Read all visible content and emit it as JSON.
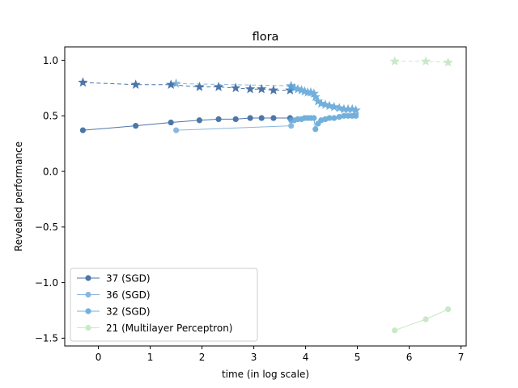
{
  "chart_data": {
    "type": "line",
    "title": "flora",
    "xlabel": "time (in log scale)",
    "ylabel": "Revealed performance",
    "xlim": [
      -0.65,
      7.1
    ],
    "ylim": [
      -1.57,
      1.12
    ],
    "xticks": [
      0,
      1,
      2,
      3,
      4,
      5,
      6,
      7
    ],
    "yticks": [
      -1.5,
      -1.0,
      -0.5,
      0.0,
      0.5,
      1.0
    ],
    "xtick_labels": [
      "0",
      "1",
      "2",
      "3",
      "4",
      "5",
      "6",
      "7"
    ],
    "ytick_labels": [
      "−1.5",
      "−1.0",
      "−0.5",
      "0.0",
      "0.5",
      "1.0"
    ],
    "grid": false,
    "legend_position": "lower-left",
    "series": [
      {
        "name": "37 (SGD)",
        "color": "#2d5f9a",
        "alpha": 0.85,
        "marker": "circle",
        "linestyle": "solid",
        "x": [
          -0.3,
          0.72,
          1.4,
          1.95,
          2.32,
          2.65,
          2.93,
          3.15,
          3.38,
          3.7
        ],
        "y": [
          0.37,
          0.41,
          0.44,
          0.46,
          0.47,
          0.47,
          0.48,
          0.48,
          0.48,
          0.48
        ]
      },
      {
        "name": "36 (SGD)",
        "color": "#5a9ad0",
        "alpha": 0.7,
        "marker": "circle",
        "linestyle": "solid",
        "x": [
          1.5,
          3.72
        ],
        "y": [
          0.37,
          0.41
        ]
      },
      {
        "name": "32 (SGD)",
        "color": "#5ba3d6",
        "alpha": 0.85,
        "marker": "circle",
        "linestyle": "solid",
        "x": [
          3.72,
          3.78,
          3.85,
          3.92,
          3.98,
          4.04,
          4.1,
          4.16,
          4.19,
          4.24,
          4.3,
          4.38,
          4.46,
          4.55,
          4.65,
          4.74,
          4.82,
          4.9,
          4.97
        ],
        "y": [
          0.46,
          0.46,
          0.47,
          0.47,
          0.48,
          0.48,
          0.48,
          0.48,
          0.38,
          0.43,
          0.46,
          0.47,
          0.48,
          0.48,
          0.49,
          0.5,
          0.5,
          0.5,
          0.5
        ]
      },
      {
        "name": "21 (Multilayer Perceptron)",
        "color": "#c6e8c4",
        "alpha": 0.95,
        "marker": "circle",
        "linestyle": "solid",
        "x": [
          5.72,
          6.32,
          6.75
        ],
        "y": [
          -1.43,
          -1.33,
          -1.24
        ]
      }
    ],
    "best_so_far_series": [
      {
        "ref": "37 (SGD)",
        "color": "#2d5f9a",
        "marker": "star",
        "linestyle": "dashed",
        "x": [
          -0.3,
          0.72,
          1.4,
          1.95,
          2.32,
          2.65,
          2.93,
          3.15,
          3.38,
          3.7
        ],
        "y": [
          0.8,
          0.78,
          0.78,
          0.76,
          0.76,
          0.75,
          0.74,
          0.74,
          0.73,
          0.73
        ]
      },
      {
        "ref": "36 (SGD)",
        "color": "#5a9ad0",
        "marker": "star",
        "linestyle": "dashed",
        "x": [
          1.5,
          3.72
        ],
        "y": [
          0.79,
          0.77
        ]
      },
      {
        "ref": "32 (SGD)",
        "color": "#5ba3d6",
        "marker": "star",
        "linestyle": "dashed",
        "x": [
          3.72,
          3.78,
          3.85,
          3.92,
          3.98,
          4.04,
          4.1,
          4.16,
          4.19,
          4.24,
          4.3,
          4.38,
          4.46,
          4.55,
          4.65,
          4.74,
          4.82,
          4.9,
          4.97
        ],
        "y": [
          0.76,
          0.75,
          0.74,
          0.73,
          0.72,
          0.71,
          0.71,
          0.7,
          0.67,
          0.63,
          0.61,
          0.6,
          0.59,
          0.58,
          0.57,
          0.56,
          0.56,
          0.56,
          0.55
        ]
      },
      {
        "ref": "21 (Multilayer Perceptron)",
        "color": "#c6e8c4",
        "marker": "star",
        "linestyle": "dashed",
        "x": [
          5.72,
          6.32,
          6.75
        ],
        "y": [
          0.99,
          0.99,
          0.98
        ]
      }
    ]
  }
}
